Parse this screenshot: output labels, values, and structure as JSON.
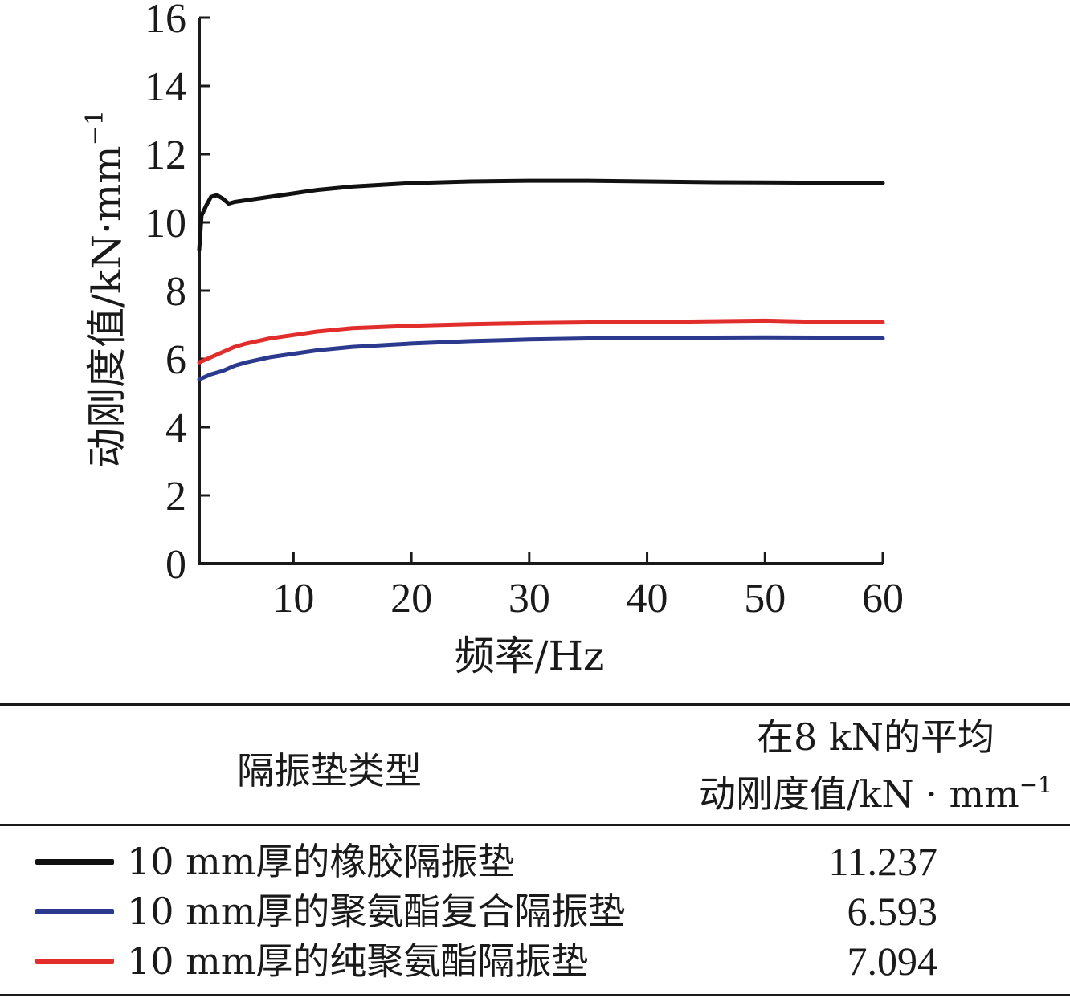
{
  "chart_data": {
    "type": "line",
    "xlabel": "频率/Hz",
    "ylabel": "动刚度值/kN·mm",
    "ylabel_sup": "−1",
    "xlim": [
      2,
      60
    ],
    "ylim": [
      0,
      16
    ],
    "xticks": [
      "10",
      "20",
      "30",
      "40",
      "50",
      "60"
    ],
    "yticks": [
      "0",
      "2",
      "4",
      "6",
      "8",
      "10",
      "12",
      "14",
      "16"
    ],
    "grid": false,
    "series": [
      {
        "name": "10 mm厚的橡胶隔振垫",
        "color": "#111111",
        "x": [
          2,
          2.2,
          2.6,
          3,
          3.5,
          4,
          4.5,
          5,
          6,
          8,
          10,
          12,
          15,
          20,
          25,
          30,
          35,
          40,
          45,
          50,
          55,
          60
        ],
        "y": [
          9.2,
          10.2,
          10.5,
          10.75,
          10.8,
          10.7,
          10.55,
          10.6,
          10.65,
          10.75,
          10.85,
          10.95,
          11.05,
          11.15,
          11.2,
          11.22,
          11.22,
          11.2,
          11.18,
          11.17,
          11.16,
          11.15
        ]
      },
      {
        "name": "10 mm厚的聚氨酯复合隔振垫",
        "color": "#2b3a8f",
        "x": [
          2,
          3,
          4,
          5,
          6,
          8,
          10,
          12,
          15,
          20,
          25,
          30,
          35,
          40,
          45,
          50,
          55,
          60
        ],
        "y": [
          5.4,
          5.55,
          5.65,
          5.8,
          5.9,
          6.05,
          6.15,
          6.25,
          6.35,
          6.45,
          6.52,
          6.57,
          6.6,
          6.62,
          6.62,
          6.63,
          6.62,
          6.6
        ]
      },
      {
        "name": "10 mm厚的纯聚氨酯隔振垫",
        "color": "#e22d2d",
        "x": [
          2,
          3,
          4,
          5,
          6,
          8,
          10,
          12,
          15,
          20,
          25,
          30,
          35,
          40,
          45,
          50,
          55,
          60
        ],
        "y": [
          5.9,
          6.05,
          6.2,
          6.35,
          6.45,
          6.6,
          6.7,
          6.8,
          6.9,
          6.97,
          7.02,
          7.05,
          7.07,
          7.08,
          7.1,
          7.12,
          7.08,
          7.07
        ]
      }
    ]
  },
  "legend_table": {
    "header_type": "隔振垫类型",
    "header_avg_line1": "在8 kN的平均",
    "header_avg_line2": "动刚度值/kN · mm",
    "header_avg_sup": "−1",
    "rows": [
      {
        "label": "10 mm厚的橡胶隔振垫",
        "value": "11.237",
        "color": "#111111"
      },
      {
        "label": "10 mm厚的聚氨酯复合隔振垫",
        "value": "6.593",
        "color": "#2b3a8f"
      },
      {
        "label": "10 mm厚的纯聚氨酯隔振垫",
        "value": "7.094",
        "color": "#e22d2d"
      }
    ]
  }
}
